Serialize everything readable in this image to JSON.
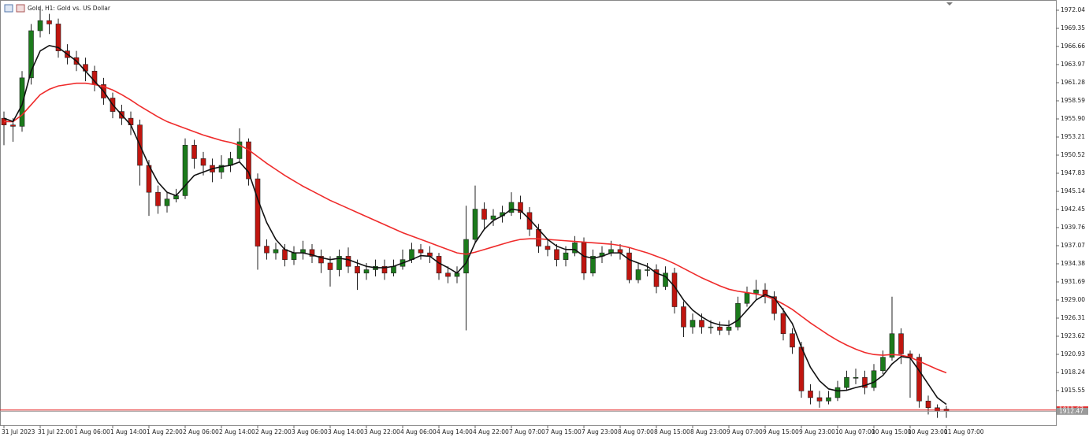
{
  "chart_data": {
    "type": "candlestick",
    "title": "Gold, H1:  Gold vs. US Dollar",
    "categories": [
      "31 Jul 2023",
      null,
      null,
      null,
      "31 Jul 22:00",
      null,
      null,
      null,
      "1 Aug 06:00",
      null,
      null,
      null,
      "1 Aug 14:00",
      null,
      null,
      null,
      "1 Aug 22:00",
      null,
      null,
      null,
      "2 Aug 06:00",
      null,
      null,
      null,
      "2 Aug 14:00",
      null,
      null,
      null,
      "2 Aug 22:00",
      null,
      null,
      null,
      "3 Aug 06:00",
      null,
      null,
      null,
      "3 Aug 14:00",
      null,
      null,
      null,
      "3 Aug 22:00",
      null,
      null,
      null,
      "4 Aug 06:00",
      null,
      null,
      null,
      "4 Aug 14:00",
      null,
      null,
      null,
      "4 Aug 22:00",
      null,
      null,
      null,
      "7 Aug 07:00",
      null,
      null,
      null,
      "7 Aug 15:00",
      null,
      null,
      null,
      "7 Aug 23:00",
      null,
      null,
      null,
      "8 Aug 07:00",
      null,
      null,
      null,
      "8 Aug 15:00",
      null,
      null,
      null,
      "8 Aug 23:00",
      null,
      null,
      null,
      "9 Aug 07:00",
      null,
      null,
      null,
      "9 Aug 15:00",
      null,
      null,
      null,
      "9 Aug 23:00",
      null,
      null,
      null,
      "10 Aug 07:00",
      null,
      null,
      null,
      "10 Aug 15:00",
      null,
      null,
      null,
      "10 Aug 23:00",
      null,
      null,
      null,
      "11 Aug 07:00"
    ],
    "open": [
      1956,
      1955,
      1954.8,
      1962,
      1969,
      1970.5,
      1970,
      1966,
      1965,
      1964,
      1963,
      1961,
      1959,
      1957,
      1956,
      1955,
      1949,
      1945,
      1943,
      1944,
      1944.5,
      1952,
      1950,
      1949,
      1948,
      1949,
      1950,
      1952.5,
      1947,
      1937,
      1936,
      1936.5,
      1935,
      1936,
      1936.5,
      1935.5,
      1934.5,
      1933.5,
      1935.5,
      1934,
      1933,
      1933.5,
      1934,
      1933,
      1934,
      1935,
      1936.5,
      1936,
      1935.5,
      1933,
      1932.5,
      1933,
      1938,
      1942.5,
      1941,
      1941.5,
      1942,
      1943.5,
      1942,
      1939.5,
      1937,
      1936.5,
      1935,
      1936,
      1937.5,
      1933,
      1935.5,
      1936,
      1936.5,
      1936,
      1932,
      1933.5,
      1933.5,
      1931,
      1933,
      1928,
      1925,
      1926,
      1925,
      1925,
      1924.5,
      1925,
      1928.5,
      1930,
      1930.5,
      1929.5,
      1927,
      1924,
      1922,
      1915.5,
      1914.5,
      1914,
      1914.5,
      1916,
      1917.5,
      1917.5,
      1916,
      1918.5,
      1920.5,
      1924,
      1921,
      1920.5,
      1914,
      1913,
      1912.8
    ],
    "high": [
      1957,
      1956,
      1963,
      1970,
      1972.5,
      1971.5,
      1970.8,
      1967,
      1966,
      1965,
      1963.8,
      1962,
      1959.8,
      1958,
      1957,
      1955.8,
      1949.8,
      1946,
      1945,
      1945.5,
      1953,
      1952.8,
      1951,
      1950,
      1950.5,
      1951,
      1954.5,
      1953,
      1947.8,
      1938,
      1937.5,
      1937.3,
      1937,
      1937.8,
      1937.3,
      1936.5,
      1935.5,
      1936.5,
      1936.8,
      1935,
      1934.5,
      1935,
      1935,
      1935,
      1936.5,
      1937.5,
      1937.3,
      1937,
      1936,
      1934,
      1934,
      1943,
      1946,
      1943.5,
      1942.5,
      1943,
      1945,
      1944.5,
      1942.8,
      1940.3,
      1938,
      1937.3,
      1937,
      1938.5,
      1938.3,
      1936.5,
      1937,
      1937.8,
      1937.3,
      1936.8,
      1934.5,
      1934.5,
      1934.3,
      1934,
      1933.8,
      1928.8,
      1927,
      1927,
      1926,
      1925.8,
      1926,
      1929.5,
      1931,
      1932,
      1931.5,
      1930.3,
      1927.8,
      1924.8,
      1922.8,
      1916.5,
      1915.5,
      1915.5,
      1917,
      1918.5,
      1918.8,
      1918.5,
      1919.5,
      1921.5,
      1929.5,
      1924.8,
      1921.5,
      1921,
      1914.8,
      1913.5,
      1913.3
    ],
    "low": [
      1952,
      1952.5,
      1954,
      1961,
      1968,
      1968.5,
      1965,
      1964,
      1963,
      1961.5,
      1960,
      1958,
      1956,
      1955,
      1953.5,
      1946,
      1941.5,
      1941.8,
      1942,
      1943.5,
      1944,
      1948.5,
      1947.5,
      1946.5,
      1947,
      1948,
      1949.5,
      1946,
      1933.5,
      1935,
      1935,
      1934,
      1934.2,
      1935,
      1934.5,
      1933,
      1931,
      1932.5,
      1933,
      1930.5,
      1932,
      1932.5,
      1932,
      1932.5,
      1933.5,
      1934.5,
      1935,
      1934.5,
      1932,
      1931.5,
      1931.5,
      1924.5,
      1937.5,
      1939.5,
      1940,
      1940.5,
      1941.5,
      1941,
      1938.5,
      1936,
      1935.5,
      1934,
      1934,
      1935.5,
      1932,
      1932.5,
      1934.5,
      1935.5,
      1935,
      1931.5,
      1931.5,
      1932.5,
      1930,
      1930.5,
      1927,
      1923.5,
      1924,
      1924,
      1924,
      1923.8,
      1923.8,
      1924.5,
      1928,
      1929,
      1928.5,
      1926,
      1923,
      1921,
      1914.5,
      1913.5,
      1913,
      1913.5,
      1914,
      1915.5,
      1916.5,
      1915,
      1915.5,
      1918,
      1920,
      1919.5,
      1914.5,
      1913,
      1912,
      1911.5,
      1911.5
    ],
    "close": [
      1955,
      1954.8,
      1962,
      1969,
      1970.5,
      1970,
      1966,
      1965,
      1964,
      1963,
      1961,
      1959,
      1957,
      1956,
      1955,
      1949,
      1945,
      1943,
      1944,
      1944.5,
      1952,
      1950,
      1949,
      1948,
      1949,
      1950,
      1952.5,
      1947,
      1937,
      1936,
      1936.5,
      1935,
      1936,
      1936.5,
      1935.5,
      1934.5,
      1933.5,
      1935.5,
      1934,
      1933,
      1933.5,
      1934,
      1933,
      1934,
      1935,
      1936.5,
      1936,
      1935.5,
      1933,
      1932.5,
      1933,
      1938,
      1942.5,
      1941,
      1941.5,
      1942,
      1943.5,
      1942,
      1939.5,
      1937,
      1936.5,
      1935,
      1936,
      1937.5,
      1933,
      1935.5,
      1936,
      1936.5,
      1936,
      1932,
      1933.5,
      1933.5,
      1931,
      1933,
      1928,
      1925,
      1926,
      1925,
      1925,
      1924.5,
      1925,
      1928.5,
      1930,
      1930.5,
      1929.5,
      1927,
      1924,
      1922,
      1915.5,
      1914.5,
      1914,
      1914.5,
      1916,
      1917.5,
      1917.5,
      1916,
      1918.5,
      1920.5,
      1924,
      1921,
      1920.5,
      1914,
      1913,
      1912.5,
      1912.5
    ],
    "up_color": "#1b7a1b",
    "down_color": "#c0150f",
    "lines": [
      {
        "color": "#ef2b2b",
        "values": [
          1955.5,
          1955.5,
          1956.5,
          1958,
          1959.5,
          1960.3,
          1960.8,
          1961,
          1961.2,
          1961.2,
          1961,
          1960.7,
          1960.2,
          1959.5,
          1958.7,
          1957.8,
          1957,
          1956.2,
          1955.5,
          1955,
          1954.5,
          1954,
          1953.5,
          1953.1,
          1952.7,
          1952.4,
          1952,
          1951.3,
          1950.3,
          1949.3,
          1948.4,
          1947.5,
          1946.7,
          1945.9,
          1945.2,
          1944.5,
          1943.8,
          1943.2,
          1942.6,
          1942,
          1941.4,
          1940.8,
          1940.2,
          1939.6,
          1939,
          1938.5,
          1938,
          1937.5,
          1937,
          1936.5,
          1936,
          1935.8,
          1936.1,
          1936.5,
          1936.9,
          1937.3,
          1937.7,
          1938,
          1938.1,
          1938.1,
          1938,
          1937.9,
          1937.8,
          1937.7,
          1937.6,
          1937.5,
          1937.4,
          1937.3,
          1937.1,
          1936.8,
          1936.4,
          1936,
          1935.5,
          1935,
          1934.4,
          1933.7,
          1933,
          1932.3,
          1931.7,
          1931.1,
          1930.6,
          1930.3,
          1930.1,
          1929.9,
          1929.6,
          1929.1,
          1928.4,
          1927.6,
          1926.6,
          1925.6,
          1924.7,
          1923.8,
          1923,
          1922.3,
          1921.7,
          1921.2,
          1920.9,
          1920.8,
          1920.9,
          1920.8,
          1920.5,
          1919.9,
          1919.3,
          1918.7,
          1918.2
        ]
      },
      {
        "color": "#111111",
        "values": [
          1956,
          1955.5,
          1958,
          1963,
          1966,
          1966.8,
          1966.5,
          1965.5,
          1964.5,
          1963,
          1961.5,
          1960,
          1958,
          1956.5,
          1955,
          1952,
          1949,
          1946.5,
          1945,
          1944.5,
          1946,
          1947.5,
          1948,
          1948.5,
          1948.8,
          1949,
          1949.5,
          1948,
          1944,
          1940.5,
          1938,
          1936.5,
          1936,
          1936,
          1935.7,
          1935.3,
          1935,
          1935.2,
          1935,
          1934.5,
          1934,
          1933.8,
          1933.8,
          1934,
          1934.5,
          1935,
          1935.6,
          1935.5,
          1934.5,
          1933.8,
          1933,
          1934.5,
          1937.5,
          1939.5,
          1940.8,
          1941.5,
          1942.5,
          1942.3,
          1941,
          1939.5,
          1938,
          1937,
          1936.5,
          1936.5,
          1935.5,
          1935.2,
          1935.5,
          1936,
          1936,
          1935,
          1934.5,
          1934,
          1933,
          1932.5,
          1931,
          1929,
          1927.5,
          1926.5,
          1925.7,
          1925.3,
          1925.2,
          1926,
          1927.5,
          1929,
          1929.8,
          1929.3,
          1927.5,
          1925.5,
          1922,
          1919,
          1917,
          1915.8,
          1915.5,
          1915.6,
          1916,
          1916.3,
          1916.8,
          1917.8,
          1919.5,
          1920.6,
          1920.4,
          1918.5,
          1916.5,
          1914.5,
          1913.5
        ]
      }
    ],
    "price_lines": [
      {
        "value": 1912.67,
        "label": "1912.67",
        "color": "#e51c1c"
      },
      {
        "value": 1912.47,
        "label": "1912.47",
        "color": "#9a9a9a"
      }
    ],
    "ylim": [
      1910.4,
      1973.21
    ],
    "yticks": [
      1972.04,
      1969.35,
      1966.66,
      1963.97,
      1961.28,
      1958.59,
      {
        "value": 1955.9,
        "label": "1955.90"
      },
      1953.21,
      1950.52,
      1947.83,
      1945.14,
      1942.45,
      1939.76,
      1937.07,
      1934.38,
      1931.69,
      {
        "value": 1929,
        "label": "1929.00"
      },
      1926.31,
      1923.62,
      1920.93,
      1918.24,
      1915.55
    ]
  }
}
